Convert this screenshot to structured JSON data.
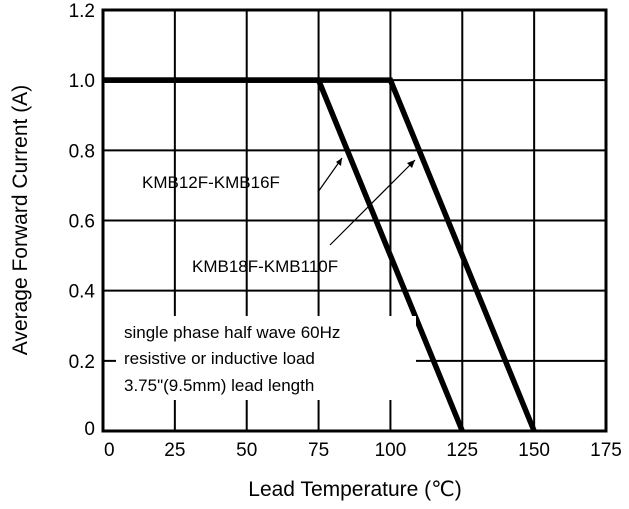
{
  "chart_data": {
    "type": "line",
    "title": "",
    "xlabel": "Lead Temperature (℃)",
    "ylabel": "Average Forward Current (A)",
    "xlim": [
      0,
      175
    ],
    "ylim": [
      0,
      1.2
    ],
    "x_ticks": [
      "0",
      "25",
      "50",
      "75",
      "100",
      "125",
      "150",
      "175"
    ],
    "y_ticks": [
      "0",
      "0.2",
      "0.4",
      "0.6",
      "0.8",
      "1.0",
      "1.2"
    ],
    "grid": true,
    "series": [
      {
        "name": "KMB12F-KMB16F",
        "x": [
          0,
          75,
          125
        ],
        "y": [
          1.0,
          1.0,
          0.0
        ]
      },
      {
        "name": "KMB18F-KMB110F",
        "x": [
          0,
          100,
          150
        ],
        "y": [
          1.0,
          1.0,
          0.0
        ]
      }
    ],
    "annotations": [
      "single phase half wave 60Hz",
      "resistive or inductive load",
      "3.75\"(9.5mm) lead length"
    ]
  }
}
